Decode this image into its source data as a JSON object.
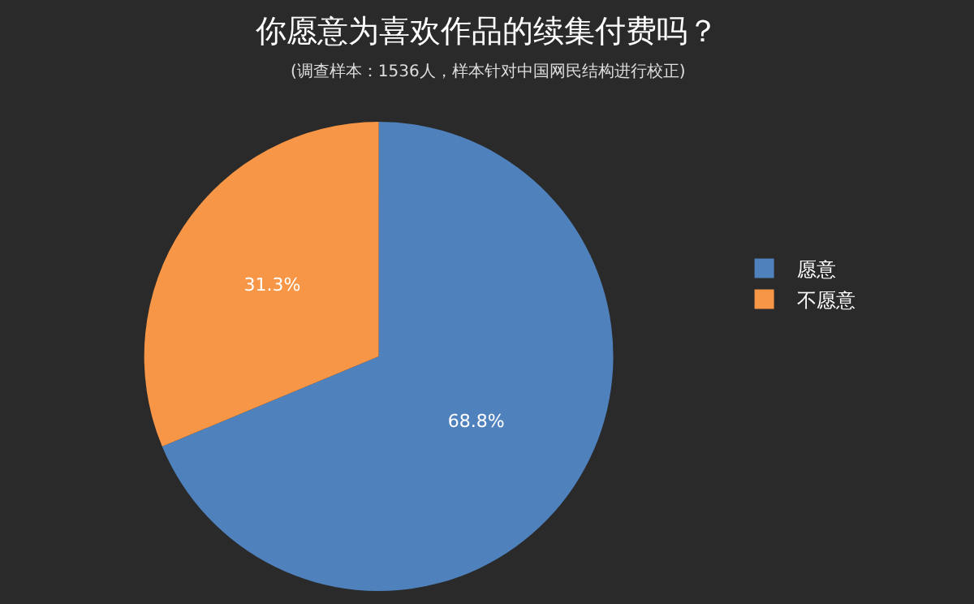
{
  "chart_data": {
    "type": "pie",
    "title": "你愿意为喜欢作品的续集付费吗？",
    "subtitle": "(调查样本：1536人，样本针对中国网民结构进行校正)",
    "categories": [
      "愿意",
      "不愿意"
    ],
    "values": [
      68.8,
      31.3
    ],
    "colors": [
      "#4f81bd",
      "#f79646"
    ],
    "value_labels": [
      "68.8%",
      "31.3%"
    ],
    "legend": "right"
  }
}
